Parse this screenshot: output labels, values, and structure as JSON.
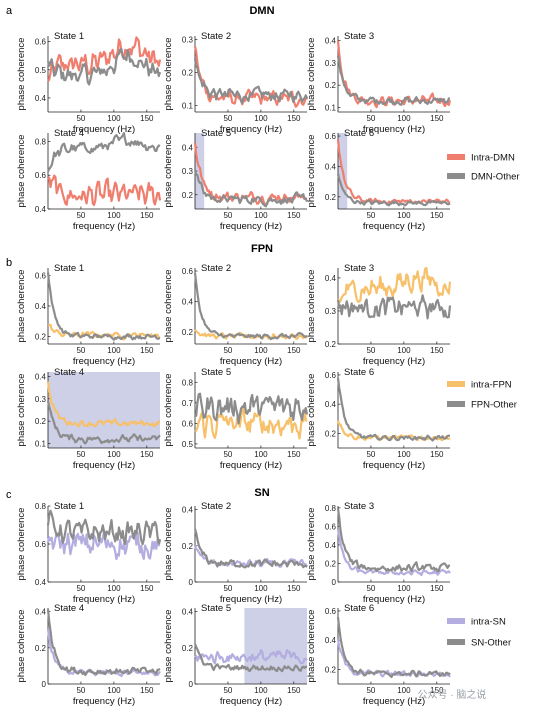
{
  "groups": [
    {
      "letter": "a",
      "title": "DMN",
      "legend": [
        {
          "label": "Intra-DMN",
          "color": "#f07e6e"
        },
        {
          "label": "DMN-Other",
          "color": "#8c8c8c"
        }
      ]
    },
    {
      "letter": "b",
      "title": "FPN",
      "legend": [
        {
          "label": "intra-FPN",
          "color": "#f7c06a"
        },
        {
          "label": "FPN-Other",
          "color": "#8c8c8c"
        }
      ]
    },
    {
      "letter": "c",
      "title": "SN",
      "legend": [
        {
          "label": "intra-SN",
          "color": "#b4aee0"
        },
        {
          "label": "SN-Other",
          "color": "#8c8c8c"
        }
      ]
    }
  ],
  "watermark": "公众号 · 脑之说",
  "chart_data": [
    {
      "group": "DMN",
      "title": "State 1",
      "type": "line",
      "xlabel": "frequency (Hz)",
      "ylabel": "phase coherence",
      "xlim": [
        0,
        170
      ],
      "ylim": [
        0.35,
        0.62
      ],
      "xticks": [
        50,
        100,
        150
      ],
      "yticks": [
        0.4,
        0.5,
        0.6
      ],
      "highlight": null,
      "series": [
        {
          "name": "Intra-DMN",
          "color": "#f07e6e",
          "start": 0.45,
          "end": 0.52,
          "peak": 0.61,
          "noise": 0.03
        },
        {
          "name": "DMN-Other",
          "color": "#8c8c8c",
          "start": 0.52,
          "end": 0.48,
          "peak": 0.57,
          "noise": 0.025
        }
      ]
    },
    {
      "group": "DMN",
      "title": "State 2",
      "type": "line",
      "xlabel": "frequency (Hz)",
      "ylabel": "phase coherence",
      "xlim": [
        0,
        170
      ],
      "ylim": [
        0.08,
        0.31
      ],
      "xticks": [
        50,
        100,
        150
      ],
      "yticks": [
        0.1,
        0.2,
        0.3
      ],
      "highlight": null,
      "series": [
        {
          "name": "Intra-DMN",
          "color": "#f07e6e",
          "start": 0.28,
          "end": 0.12,
          "noise": 0.015
        },
        {
          "name": "DMN-Other",
          "color": "#8c8c8c",
          "start": 0.25,
          "end": 0.13,
          "noise": 0.015
        }
      ]
    },
    {
      "group": "DMN",
      "title": "State 3",
      "type": "line",
      "xlabel": "frequency (Hz)",
      "ylabel": "phase coherence",
      "xlim": [
        0,
        170
      ],
      "ylim": [
        0.08,
        0.42
      ],
      "xticks": [
        50,
        100,
        150
      ],
      "yticks": [
        0.1,
        0.2,
        0.3,
        0.4
      ],
      "highlight": null,
      "series": [
        {
          "name": "Intra-DMN",
          "color": "#f07e6e",
          "start": 0.4,
          "end": 0.13,
          "noise": 0.015
        },
        {
          "name": "DMN-Other",
          "color": "#8c8c8c",
          "start": 0.33,
          "end": 0.13,
          "noise": 0.012
        }
      ]
    },
    {
      "group": "DMN",
      "title": "State 4",
      "type": "line",
      "xlabel": "frequency (Hz)",
      "ylabel": "phase coherence",
      "xlim": [
        0,
        170
      ],
      "ylim": [
        0.4,
        0.85
      ],
      "xticks": [
        50,
        100,
        150
      ],
      "yticks": [
        0.4,
        0.6,
        0.8
      ],
      "highlight": null,
      "series": [
        {
          "name": "Intra-DMN",
          "color": "#f07e6e",
          "start": 0.6,
          "end": 0.48,
          "noise": 0.05
        },
        {
          "name": "DMN-Other",
          "color": "#8c8c8c",
          "start": 0.62,
          "end": 0.76,
          "peak": 0.82,
          "noise": 0.025
        }
      ]
    },
    {
      "group": "DMN",
      "title": "State 5",
      "type": "line",
      "xlabel": "frequency (Hz)",
      "ylabel": "phase coherence",
      "xlim": [
        0,
        170
      ],
      "ylim": [
        0.14,
        0.46
      ],
      "xticks": [
        50,
        100,
        150
      ],
      "yticks": [
        0.2,
        0.3,
        0.4
      ],
      "highlight": [
        0,
        14
      ],
      "series": [
        {
          "name": "Intra-DMN",
          "color": "#f07e6e",
          "start": 0.43,
          "end": 0.19,
          "noise": 0.015
        },
        {
          "name": "DMN-Other",
          "color": "#8c8c8c",
          "start": 0.32,
          "end": 0.18,
          "noise": 0.015
        }
      ]
    },
    {
      "group": "DMN",
      "title": "State 6",
      "type": "line",
      "xlabel": "frequency (Hz)",
      "ylabel": "phase coherence",
      "xlim": [
        0,
        170
      ],
      "ylim": [
        0.12,
        0.62
      ],
      "xticks": [
        50,
        100,
        150
      ],
      "yticks": [
        0.2,
        0.4,
        0.6
      ],
      "highlight": [
        0,
        14
      ],
      "series": [
        {
          "name": "Intra-DMN",
          "color": "#f07e6e",
          "start": 0.58,
          "end": 0.17,
          "noise": 0.012
        },
        {
          "name": "DMN-Other",
          "color": "#8c8c8c",
          "start": 0.35,
          "end": 0.16,
          "noise": 0.01
        }
      ]
    },
    {
      "group": "FPN",
      "title": "State 1",
      "type": "line",
      "xlabel": "frequency (Hz)",
      "ylabel": "phase coherence",
      "xlim": [
        0,
        170
      ],
      "ylim": [
        0.15,
        0.65
      ],
      "xticks": [
        50,
        100,
        150
      ],
      "yticks": [
        0.2,
        0.4,
        0.6
      ],
      "highlight": null,
      "series": [
        {
          "name": "intra-FPN",
          "color": "#f7c06a",
          "start": 0.28,
          "end": 0.21,
          "noise": 0.015
        },
        {
          "name": "FPN-Other",
          "color": "#8c8c8c",
          "start": 0.62,
          "end": 0.2,
          "noise": 0.012
        }
      ]
    },
    {
      "group": "FPN",
      "title": "State 2",
      "type": "line",
      "xlabel": "frequency (Hz)",
      "ylabel": "phase coherence",
      "xlim": [
        0,
        170
      ],
      "ylim": [
        0.12,
        0.62
      ],
      "xticks": [
        50,
        100,
        150
      ],
      "yticks": [
        0.2,
        0.4,
        0.6
      ],
      "highlight": null,
      "series": [
        {
          "name": "intra-FPN",
          "color": "#f7c06a",
          "start": 0.22,
          "end": 0.17,
          "noise": 0.012
        },
        {
          "name": "FPN-Other",
          "color": "#8c8c8c",
          "start": 0.58,
          "end": 0.17,
          "noise": 0.012
        }
      ]
    },
    {
      "group": "FPN",
      "title": "State 3",
      "type": "line",
      "xlabel": "frequency (Hz)",
      "ylabel": "phase coherence",
      "xlim": [
        0,
        170
      ],
      "ylim": [
        0.2,
        0.43
      ],
      "xticks": [
        50,
        100,
        150
      ],
      "yticks": [
        0.2,
        0.3,
        0.4
      ],
      "highlight": null,
      "series": [
        {
          "name": "intra-FPN",
          "color": "#f7c06a",
          "start": 0.32,
          "end": 0.37,
          "peak": 0.41,
          "noise": 0.025
        },
        {
          "name": "FPN-Other",
          "color": "#8c8c8c",
          "start": 0.33,
          "end": 0.31,
          "noise": 0.025
        }
      ]
    },
    {
      "group": "FPN",
      "title": "State 4",
      "type": "line",
      "xlabel": "frequency (Hz)",
      "ylabel": "phase coherence",
      "xlim": [
        0,
        170
      ],
      "ylim": [
        0.08,
        0.42
      ],
      "xticks": [
        50,
        100,
        150
      ],
      "yticks": [
        0.1,
        0.2,
        0.3,
        0.4
      ],
      "highlight": [
        0,
        170
      ],
      "series": [
        {
          "name": "intra-FPN",
          "color": "#f7c06a",
          "start": 0.37,
          "end": 0.19,
          "noise": 0.01
        },
        {
          "name": "FPN-Other",
          "color": "#8c8c8c",
          "start": 0.3,
          "end": 0.12,
          "noise": 0.012
        }
      ]
    },
    {
      "group": "FPN",
      "title": "State 5",
      "type": "line",
      "xlabel": "frequency (Hz)",
      "ylabel": "phase coherence",
      "xlim": [
        0,
        170
      ],
      "ylim": [
        0.48,
        0.85
      ],
      "xticks": [
        50,
        100,
        150
      ],
      "yticks": [
        0.5,
        0.6,
        0.7,
        0.8
      ],
      "highlight": null,
      "series": [
        {
          "name": "intra-FPN",
          "color": "#f7c06a",
          "start": 0.6,
          "end": 0.6,
          "noise": 0.05
        },
        {
          "name": "FPN-Other",
          "color": "#8c8c8c",
          "start": 0.68,
          "end": 0.68,
          "noise": 0.05
        }
      ]
    },
    {
      "group": "FPN",
      "title": "State 6",
      "type": "line",
      "xlabel": "frequency (Hz)",
      "ylabel": "phase coherence",
      "xlim": [
        0,
        170
      ],
      "ylim": [
        0.1,
        0.62
      ],
      "xticks": [
        50,
        100,
        150
      ],
      "yticks": [
        0.2,
        0.4,
        0.6
      ],
      "highlight": null,
      "series": [
        {
          "name": "intra-FPN",
          "color": "#f7c06a",
          "start": 0.3,
          "end": 0.17,
          "noise": 0.012
        },
        {
          "name": "FPN-Other",
          "color": "#8c8c8c",
          "start": 0.58,
          "end": 0.17,
          "noise": 0.012
        }
      ]
    },
    {
      "group": "SN",
      "title": "State 1",
      "type": "line",
      "xlabel": "frequency (Hz)",
      "ylabel": "phase coherence",
      "xlim": [
        0,
        170
      ],
      "ylim": [
        0.4,
        0.8
      ],
      "xticks": [
        50,
        100,
        150
      ],
      "yticks": [
        0.4,
        0.6,
        0.8
      ],
      "highlight": null,
      "series": [
        {
          "name": "intra-SN",
          "color": "#b4aee0",
          "start": 0.62,
          "end": 0.6,
          "noise": 0.05
        },
        {
          "name": "SN-Other",
          "color": "#8c8c8c",
          "start": 0.74,
          "end": 0.66,
          "noise": 0.04
        }
      ]
    },
    {
      "group": "SN",
      "title": "State 2",
      "type": "line",
      "xlabel": "frequency (Hz)",
      "ylabel": "phase coherence",
      "xlim": [
        0,
        170
      ],
      "ylim": [
        0,
        0.42
      ],
      "xticks": [
        50,
        100,
        150
      ],
      "yticks": [
        0,
        0.2,
        0.4
      ],
      "highlight": null,
      "series": [
        {
          "name": "intra-SN",
          "color": "#b4aee0",
          "start": 0.2,
          "end": 0.1,
          "noise": 0.015
        },
        {
          "name": "SN-Other",
          "color": "#8c8c8c",
          "start": 0.28,
          "end": 0.1,
          "noise": 0.015
        }
      ]
    },
    {
      "group": "SN",
      "title": "State 3",
      "type": "line",
      "xlabel": "frequency (Hz)",
      "ylabel": "phase coherence",
      "xlim": [
        0,
        170
      ],
      "ylim": [
        0,
        0.82
      ],
      "xticks": [
        50,
        100,
        150
      ],
      "yticks": [
        0,
        0.2,
        0.4,
        0.6,
        0.8
      ],
      "highlight": null,
      "series": [
        {
          "name": "intra-SN",
          "color": "#b4aee0",
          "start": 0.55,
          "end": 0.1,
          "noise": 0.02
        },
        {
          "name": "SN-Other",
          "color": "#8c8c8c",
          "start": 0.78,
          "end": 0.15,
          "noise": 0.03
        }
      ]
    },
    {
      "group": "SN",
      "title": "State 4",
      "type": "line",
      "xlabel": "frequency (Hz)",
      "ylabel": "phase coherence",
      "xlim": [
        0,
        170
      ],
      "ylim": [
        0,
        0.42
      ],
      "xticks": [
        50,
        100,
        150
      ],
      "yticks": [
        0,
        0.2,
        0.4
      ],
      "highlight": null,
      "series": [
        {
          "name": "intra-SN",
          "color": "#b4aee0",
          "start": 0.3,
          "end": 0.06,
          "noise": 0.012
        },
        {
          "name": "SN-Other",
          "color": "#8c8c8c",
          "start": 0.4,
          "end": 0.07,
          "noise": 0.014
        }
      ]
    },
    {
      "group": "SN",
      "title": "State 5",
      "type": "line",
      "xlabel": "frequency (Hz)",
      "ylabel": "phase coherence",
      "xlim": [
        0,
        170
      ],
      "ylim": [
        0,
        0.42
      ],
      "xticks": [
        50,
        100,
        150
      ],
      "yticks": [
        0,
        0.2,
        0.4
      ],
      "highlight": [
        75,
        170
      ],
      "series": [
        {
          "name": "intra-SN",
          "color": "#b4aee0",
          "start": 0.15,
          "end": 0.15,
          "noise": 0.025
        },
        {
          "name": "SN-Other",
          "color": "#8c8c8c",
          "start": 0.22,
          "end": 0.09,
          "noise": 0.012
        }
      ]
    },
    {
      "group": "SN",
      "title": "State 6",
      "type": "line",
      "xlabel": "frequency (Hz)",
      "ylabel": "phase coherence",
      "xlim": [
        0,
        170
      ],
      "ylim": [
        0.1,
        0.62
      ],
      "xticks": [
        50,
        100,
        150
      ],
      "yticks": [
        0.2,
        0.4,
        0.6
      ],
      "highlight": null,
      "series": [
        {
          "name": "intra-SN",
          "color": "#b4aee0",
          "start": 0.4,
          "end": 0.17,
          "noise": 0.014
        },
        {
          "name": "SN-Other",
          "color": "#8c8c8c",
          "start": 0.55,
          "end": 0.17,
          "noise": 0.014
        }
      ]
    }
  ]
}
